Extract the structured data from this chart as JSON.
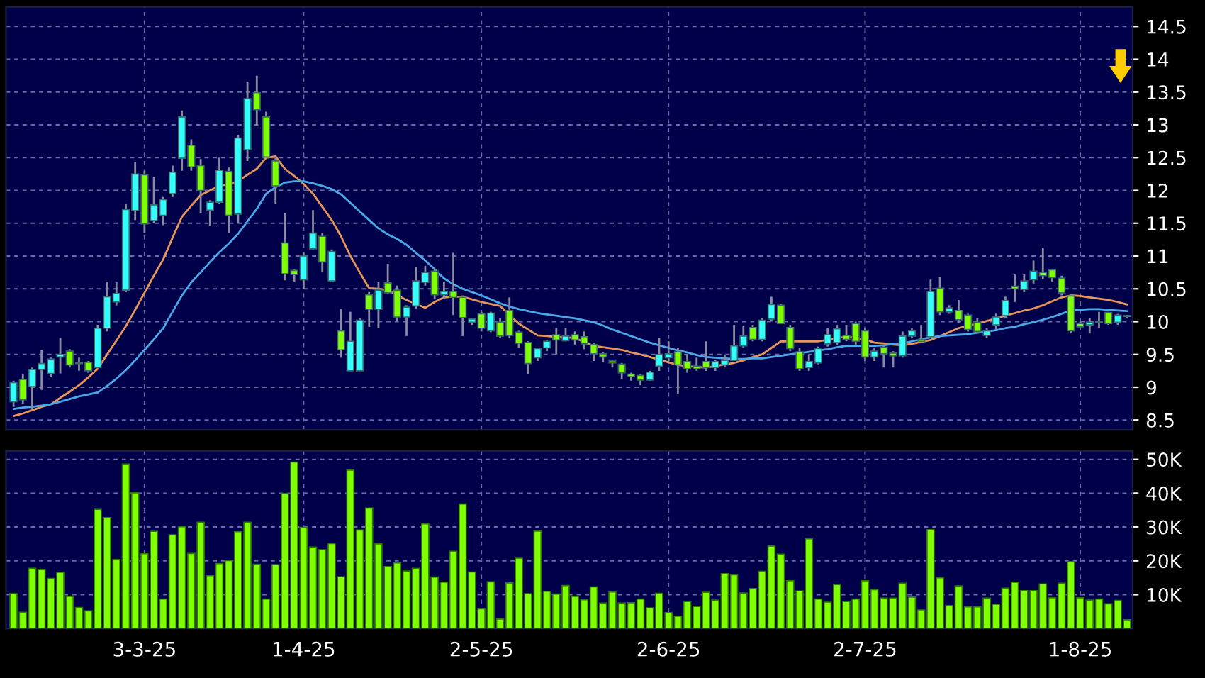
{
  "chart_data": [
    {
      "type": "candlestick",
      "categories": [
        null,
        null,
        null,
        null,
        null,
        null,
        null,
        null,
        null,
        null,
        null,
        null,
        null,
        null,
        null,
        null,
        null,
        null,
        null,
        null,
        null,
        null,
        null,
        null,
        null,
        null,
        null,
        null,
        null,
        null,
        null,
        null,
        null,
        null,
        null,
        null,
        null,
        null,
        null,
        null,
        null,
        null,
        null,
        null,
        null,
        null,
        null,
        null,
        null,
        null,
        null,
        null,
        null,
        null,
        null,
        null,
        null,
        null,
        null,
        null,
        null,
        null,
        null,
        null,
        null,
        null,
        null,
        null,
        null,
        null,
        null,
        null,
        null,
        null,
        null,
        null,
        null,
        null,
        null,
        null,
        null,
        null,
        null,
        null,
        null,
        null,
        null,
        null,
        null,
        null,
        null,
        null,
        null,
        null,
        null,
        null,
        null,
        null,
        null,
        null,
        null,
        null,
        null,
        null,
        null,
        null,
        null,
        null,
        null,
        null,
        null,
        null,
        null,
        null,
        null,
        null,
        null,
        null,
        null,
        null
      ],
      "ohlc": [
        [
          8.78,
          9.1,
          8.7,
          9.07
        ],
        [
          9.12,
          9.2,
          8.75,
          8.81
        ],
        [
          9.01,
          9.3,
          8.67,
          9.27
        ],
        [
          9.27,
          9.57,
          8.96,
          9.36
        ],
        [
          9.21,
          9.45,
          9.15,
          9.43
        ],
        [
          9.46,
          9.75,
          9.21,
          9.5
        ],
        [
          9.55,
          9.58,
          9.3,
          9.34
        ],
        [
          9.36,
          9.45,
          9.25,
          9.37
        ],
        [
          9.38,
          9.4,
          9.22,
          9.25
        ],
        [
          9.3,
          9.95,
          9.28,
          9.9
        ],
        [
          9.9,
          10.61,
          9.85,
          10.38
        ],
        [
          10.3,
          10.6,
          10.25,
          10.43
        ],
        [
          10.48,
          11.8,
          10.45,
          11.71
        ],
        [
          11.69,
          12.43,
          11.55,
          12.25
        ],
        [
          12.24,
          12.3,
          11.35,
          11.49
        ],
        [
          11.54,
          12.2,
          11.5,
          11.78
        ],
        [
          11.62,
          11.9,
          11.47,
          11.86
        ],
        [
          11.95,
          12.38,
          11.9,
          12.28
        ],
        [
          12.49,
          13.22,
          12.3,
          13.12
        ],
        [
          12.69,
          12.78,
          12.3,
          12.36
        ],
        [
          12.38,
          12.48,
          11.65,
          12.0
        ],
        [
          11.7,
          11.85,
          11.46,
          11.82
        ],
        [
          11.82,
          12.5,
          11.8,
          12.31
        ],
        [
          12.29,
          12.35,
          11.35,
          11.62
        ],
        [
          11.64,
          12.85,
          11.5,
          12.8
        ],
        [
          12.62,
          13.65,
          12.45,
          13.4
        ],
        [
          13.49,
          13.75,
          12.98,
          13.23
        ],
        [
          13.12,
          13.2,
          12.5,
          12.51
        ],
        [
          12.45,
          12.5,
          11.8,
          12.07
        ],
        [
          11.2,
          11.65,
          10.63,
          10.73
        ],
        [
          10.78,
          10.8,
          10.6,
          10.72
        ],
        [
          10.64,
          11.05,
          10.5,
          11.0
        ],
        [
          11.11,
          11.7,
          11.1,
          11.35
        ],
        [
          11.3,
          11.35,
          10.75,
          10.91
        ],
        [
          10.62,
          11.1,
          10.6,
          11.07
        ],
        [
          9.86,
          10.2,
          9.45,
          9.57
        ],
        [
          9.25,
          10.15,
          9.25,
          9.7
        ],
        [
          9.25,
          10.05,
          9.25,
          10.02
        ],
        [
          10.41,
          10.45,
          9.92,
          10.19
        ],
        [
          10.19,
          10.6,
          9.9,
          10.48
        ],
        [
          10.59,
          10.88,
          10.42,
          10.44
        ],
        [
          10.48,
          10.55,
          10.0,
          10.07
        ],
        [
          10.07,
          10.25,
          9.78,
          10.22
        ],
        [
          10.24,
          10.83,
          10.2,
          10.62
        ],
        [
          10.6,
          10.85,
          10.55,
          10.75
        ],
        [
          10.77,
          10.8,
          10.35,
          10.41
        ],
        [
          10.41,
          10.6,
          10.35,
          10.46
        ],
        [
          10.46,
          11.05,
          10.1,
          10.37
        ],
        [
          10.37,
          10.4,
          9.78,
          10.06
        ],
        [
          9.99,
          10.05,
          9.95,
          10.04
        ],
        [
          10.12,
          10.15,
          9.85,
          9.9
        ],
        [
          9.86,
          10.15,
          9.84,
          10.13
        ],
        [
          9.99,
          10.05,
          9.75,
          9.78
        ],
        [
          10.17,
          10.37,
          9.75,
          9.79
        ],
        [
          9.84,
          9.86,
          9.6,
          9.67
        ],
        [
          9.68,
          9.7,
          9.2,
          9.36
        ],
        [
          9.45,
          9.6,
          9.4,
          9.59
        ],
        [
          9.6,
          9.72,
          9.55,
          9.7
        ],
        [
          9.8,
          9.9,
          9.5,
          9.72
        ],
        [
          9.71,
          9.9,
          9.7,
          9.78
        ],
        [
          9.8,
          9.85,
          9.65,
          9.72
        ],
        [
          9.77,
          9.85,
          9.58,
          9.66
        ],
        [
          9.65,
          9.68,
          9.4,
          9.51
        ],
        [
          9.51,
          9.53,
          9.38,
          9.46
        ],
        [
          9.4,
          9.42,
          9.3,
          9.37
        ],
        [
          9.35,
          9.37,
          9.13,
          9.22
        ],
        [
          9.2,
          9.22,
          9.1,
          9.16
        ],
        [
          9.18,
          9.2,
          9.03,
          9.11
        ],
        [
          9.11,
          9.25,
          9.1,
          9.23
        ],
        [
          9.32,
          9.75,
          9.25,
          9.5
        ],
        [
          9.45,
          9.7,
          9.4,
          9.51
        ],
        [
          9.54,
          9.6,
          8.9,
          9.34
        ],
        [
          9.39,
          9.5,
          9.22,
          9.28
        ],
        [
          9.32,
          9.45,
          9.25,
          9.28
        ],
        [
          9.39,
          9.7,
          9.25,
          9.3
        ],
        [
          9.3,
          9.42,
          9.25,
          9.39
        ],
        [
          9.34,
          9.5,
          9.3,
          9.41
        ],
        [
          9.41,
          9.95,
          9.4,
          9.63
        ],
        [
          9.63,
          9.93,
          9.6,
          9.78
        ],
        [
          9.91,
          9.95,
          9.7,
          9.73
        ],
        [
          9.73,
          10.05,
          9.7,
          10.02
        ],
        [
          10.04,
          10.38,
          10.0,
          10.26
        ],
        [
          10.25,
          10.27,
          9.97,
          9.97
        ],
        [
          9.91,
          9.95,
          9.55,
          9.59
        ],
        [
          9.54,
          9.6,
          9.25,
          9.28
        ],
        [
          9.3,
          9.5,
          9.25,
          9.39
        ],
        [
          9.37,
          9.62,
          9.35,
          9.59
        ],
        [
          9.66,
          9.9,
          9.62,
          9.8
        ],
        [
          9.68,
          9.95,
          9.65,
          9.89
        ],
        [
          9.79,
          9.95,
          9.7,
          9.73
        ],
        [
          9.97,
          10.0,
          9.65,
          9.7
        ],
        [
          9.86,
          9.9,
          9.4,
          9.46
        ],
        [
          9.46,
          9.6,
          9.4,
          9.55
        ],
        [
          9.61,
          9.65,
          9.3,
          9.51
        ],
        [
          9.52,
          9.55,
          9.3,
          9.48
        ],
        [
          9.48,
          9.85,
          9.45,
          9.78
        ],
        [
          9.78,
          9.9,
          9.75,
          9.86
        ],
        [
          9.73,
          9.95,
          9.68,
          9.7
        ],
        [
          9.77,
          10.64,
          9.75,
          10.46
        ],
        [
          10.51,
          10.68,
          10.1,
          10.15
        ],
        [
          10.15,
          10.25,
          10.12,
          10.21
        ],
        [
          10.17,
          10.33,
          9.98,
          10.03
        ],
        [
          10.1,
          10.12,
          9.85,
          9.88
        ],
        [
          9.99,
          10.05,
          9.82,
          9.85
        ],
        [
          9.79,
          9.9,
          9.75,
          9.86
        ],
        [
          9.95,
          10.12,
          9.88,
          10.07
        ],
        [
          10.09,
          10.38,
          10.05,
          10.32
        ],
        [
          10.54,
          10.72,
          10.3,
          10.5
        ],
        [
          10.49,
          10.72,
          10.45,
          10.62
        ],
        [
          10.64,
          10.93,
          10.58,
          10.77
        ],
        [
          10.75,
          11.12,
          10.65,
          10.7
        ],
        [
          10.79,
          10.8,
          10.6,
          10.67
        ],
        [
          10.66,
          10.7,
          10.4,
          10.44
        ],
        [
          10.39,
          10.42,
          9.82,
          9.86
        ],
        [
          9.97,
          10.0,
          9.9,
          9.92
        ],
        [
          9.95,
          10.05,
          9.82,
          9.99
        ],
        [
          9.99,
          10.15,
          9.9,
          10.0
        ],
        [
          10.14,
          10.15,
          9.95,
          9.97
        ],
        [
          9.99,
          10.12,
          9.95,
          10.1
        ],
        [
          10.08,
          10.1,
          10.05,
          10.09
        ]
      ],
      "colors": [
        "#33ffff",
        "#80ff00",
        "#33ffff",
        "#33ffff",
        "#33ffff",
        "#33ffff",
        "#80ff00",
        "#33ffff",
        "#80ff00",
        "#33ffff",
        "#33ffff",
        "#33ffff",
        "#33ffff",
        "#33ffff",
        "#80ff00",
        "#33ffff",
        "#33ffff",
        "#33ffff",
        "#33ffff",
        "#80ff00",
        "#80ff00",
        "#33ffff",
        "#33ffff",
        "#80ff00",
        "#33ffff",
        "#33ffff",
        "#80ff00",
        "#80ff00",
        "#80ff00",
        "#80ff00",
        "#80ff00",
        "#33ffff",
        "#33ffff",
        "#80ff00",
        "#33ffff",
        "#80ff00",
        "#33ffff",
        "#33ffff",
        "#80ff00",
        "#33ffff",
        "#80ff00",
        "#80ff00",
        "#33ffff",
        "#33ffff",
        "#33ffff",
        "#80ff00",
        "#33ffff",
        "#80ff00",
        "#80ff00",
        "#33ffff",
        "#80ff00",
        "#33ffff",
        "#80ff00",
        "#80ff00",
        "#80ff00",
        "#80ff00",
        "#33ffff",
        "#33ffff",
        "#80ff00",
        "#33ffff",
        "#80ff00",
        "#80ff00",
        "#80ff00",
        "#80ff00",
        "#80ff00",
        "#80ff00",
        "#80ff00",
        "#80ff00",
        "#33ffff",
        "#33ffff",
        "#33ffff",
        "#80ff00",
        "#80ff00",
        "#80ff00",
        "#80ff00",
        "#33ffff",
        "#33ffff",
        "#33ffff",
        "#33ffff",
        "#80ff00",
        "#33ffff",
        "#33ffff",
        "#80ff00",
        "#80ff00",
        "#80ff00",
        "#33ffff",
        "#33ffff",
        "#33ffff",
        "#33ffff",
        "#80ff00",
        "#80ff00",
        "#80ff00",
        "#33ffff",
        "#80ff00",
        "#80ff00",
        "#33ffff",
        "#33ffff",
        "#80ff00",
        "#33ffff",
        "#80ff00",
        "#33ffff",
        "#80ff00",
        "#80ff00",
        "#80ff00",
        "#33ffff",
        "#33ffff",
        "#33ffff",
        "#80ff00",
        "#33ffff",
        "#33ffff",
        "#80ff00",
        "#80ff00",
        "#80ff00",
        "#80ff00",
        "#80ff00",
        "#33ffff",
        "#33ffff",
        "#80ff00",
        "#33ffff",
        "#33ffff"
      ],
      "series": [
        {
          "type": "line",
          "color": "#e8955a",
          "values": [
            8.56,
            8.6,
            8.65,
            8.7,
            8.74,
            8.84,
            8.93,
            9.03,
            9.15,
            9.28,
            9.5,
            9.71,
            9.93,
            10.18,
            10.44,
            10.7,
            10.95,
            11.28,
            11.6,
            11.77,
            11.93,
            12.0,
            12.07,
            12.1,
            12.14,
            12.24,
            12.33,
            12.5,
            12.52,
            12.33,
            12.22,
            12.1,
            11.95,
            11.75,
            11.55,
            11.3,
            11.0,
            10.75,
            10.51,
            10.5,
            10.48,
            10.4,
            10.33,
            10.27,
            10.21,
            10.3,
            10.37,
            10.38,
            10.38,
            10.34,
            10.3,
            10.27,
            10.24,
            10.1,
            9.97,
            9.88,
            9.79,
            9.78,
            9.77,
            9.76,
            9.75,
            9.69,
            9.63,
            9.61,
            9.59,
            9.57,
            9.53,
            9.5,
            9.46,
            9.42,
            9.38,
            9.34,
            9.32,
            9.31,
            9.3,
            9.32,
            9.35,
            9.37,
            9.41,
            9.46,
            9.5,
            9.6,
            9.7,
            9.7,
            9.7,
            9.7,
            9.7,
            9.72,
            9.75,
            9.77,
            9.75,
            9.73,
            9.68,
            9.67,
            9.65,
            9.64,
            9.66,
            9.69,
            9.72,
            9.78,
            9.84,
            9.9,
            9.94,
            9.97,
            10.01,
            10.05,
            10.09,
            10.13,
            10.17,
            10.2,
            10.25,
            10.31,
            10.37,
            10.4,
            10.39,
            10.37,
            10.35,
            10.33,
            10.3,
            10.26
          ]
        },
        {
          "type": "line",
          "color": "#4aa8e8",
          "values": [
            8.67,
            8.69,
            8.7,
            8.72,
            8.74,
            8.78,
            8.82,
            8.86,
            8.89,
            8.92,
            9.02,
            9.13,
            9.26,
            9.41,
            9.57,
            9.73,
            9.9,
            10.15,
            10.4,
            10.6,
            10.75,
            10.91,
            11.06,
            11.19,
            11.34,
            11.53,
            11.72,
            11.95,
            12.05,
            12.12,
            12.14,
            12.14,
            12.11,
            12.07,
            12.02,
            11.94,
            11.81,
            11.68,
            11.55,
            11.42,
            11.33,
            11.26,
            11.17,
            11.05,
            10.93,
            10.8,
            10.66,
            10.57,
            10.5,
            10.45,
            10.4,
            10.34,
            10.28,
            10.23,
            10.19,
            10.16,
            10.13,
            10.11,
            10.09,
            10.07,
            10.05,
            10.02,
            9.99,
            9.94,
            9.88,
            9.83,
            9.78,
            9.73,
            9.68,
            9.64,
            9.6,
            9.56,
            9.53,
            9.49,
            9.46,
            9.45,
            9.44,
            9.43,
            9.43,
            9.44,
            9.44,
            9.46,
            9.48,
            9.5,
            9.52,
            9.54,
            9.56,
            9.58,
            9.61,
            9.63,
            9.63,
            9.63,
            9.63,
            9.64,
            9.66,
            9.67,
            9.7,
            9.73,
            9.76,
            9.78,
            9.79,
            9.8,
            9.81,
            9.83,
            9.85,
            9.87,
            9.9,
            9.92,
            9.96,
            9.99,
            10.03,
            10.07,
            10.12,
            10.17,
            10.18,
            10.19,
            10.19,
            10.18,
            10.17,
            10.16
          ]
        }
      ],
      "ylim": [
        8.35,
        14.8
      ],
      "yticks": [
        8.5,
        9,
        9.5,
        10,
        10.5,
        11,
        11.5,
        12,
        12.5,
        13,
        13.5,
        14,
        14.5
      ],
      "grid": true,
      "tick_labels": "y"
    },
    {
      "type": "bar",
      "categories": [
        null,
        null,
        null,
        null,
        null,
        null,
        null,
        null,
        null,
        null,
        null,
        null,
        null,
        null,
        "3-3-25",
        null,
        null,
        null,
        null,
        null,
        null,
        null,
        null,
        null,
        null,
        null,
        null,
        null,
        null,
        null,
        null,
        "1-4-25",
        null,
        null,
        null,
        null,
        null,
        null,
        null,
        null,
        null,
        null,
        null,
        null,
        null,
        null,
        null,
        null,
        null,
        null,
        "2-5-25",
        null,
        null,
        null,
        null,
        null,
        null,
        null,
        null,
        null,
        null,
        null,
        null,
        null,
        null,
        null,
        null,
        null,
        null,
        null,
        "2-6-25",
        null,
        null,
        null,
        null,
        null,
        null,
        null,
        null,
        null,
        null,
        null,
        null,
        null,
        null,
        null,
        null,
        null,
        null,
        null,
        null,
        "2-7-25",
        null,
        null,
        null,
        null,
        null,
        null,
        null,
        null,
        null,
        null,
        null,
        null,
        null,
        null,
        null,
        null,
        null,
        null,
        null,
        null,
        null,
        null,
        "1-8-25",
        null,
        null,
        null,
        null,
        null
      ],
      "values": [
        10.3,
        4.8,
        17.8,
        17.4,
        14.8,
        16.6,
        9.5,
        6.2,
        5.2,
        35.2,
        32.8,
        20.4,
        48.6,
        40.1,
        22.1,
        28.7,
        8.7,
        27.7,
        30.1,
        22.2,
        31.4,
        15.6,
        19.2,
        20.1,
        28.6,
        31.4,
        19.0,
        8.7,
        18.9,
        39.9,
        49.2,
        29.9,
        24.1,
        23.3,
        25.1,
        15.3,
        46.8,
        29.1,
        35.6,
        25.0,
        18.3,
        19.4,
        17.0,
        17.8,
        30.9,
        15.2,
        13.7,
        22.8,
        36.8,
        16.7,
        5.8,
        13.8,
        2.8,
        13.5,
        20.8,
        10.3,
        28.8,
        11.0,
        10.2,
        12.7,
        9.5,
        8.5,
        12.3,
        7.5,
        10.8,
        7.5,
        7.6,
        8.7,
        6.1,
        10.4,
        4.7,
        3.6,
        8.0,
        6.5,
        10.7,
        8.4,
        16.2,
        15.9,
        10.5,
        11.8,
        16.9,
        24.4,
        22.0,
        14.1,
        11.1,
        26.5,
        8.7,
        7.8,
        13.0,
        8.0,
        8.7,
        14.1,
        11.5,
        9.0,
        9.0,
        13.4,
        9.3,
        5.5,
        29.2,
        15.0,
        6.8,
        12.6,
        6.4,
        6.4,
        9.0,
        7.2,
        11.9,
        13.7,
        11.2,
        11.2,
        13.2,
        9.1,
        13.4,
        19.8,
        9.1,
        8.4,
        8.7,
        7.3,
        8.3,
        2.6
      ],
      "color": "#80ff00",
      "ylim": [
        0,
        52.5
      ],
      "yticks": [
        {
          "value": 10,
          "label": "10K"
        },
        {
          "value": 20,
          "label": "20K"
        },
        {
          "value": 30,
          "label": "30K"
        },
        {
          "value": 40,
          "label": "40K"
        },
        {
          "value": 50,
          "label": "50K"
        }
      ],
      "grid": true
    }
  ]
}
